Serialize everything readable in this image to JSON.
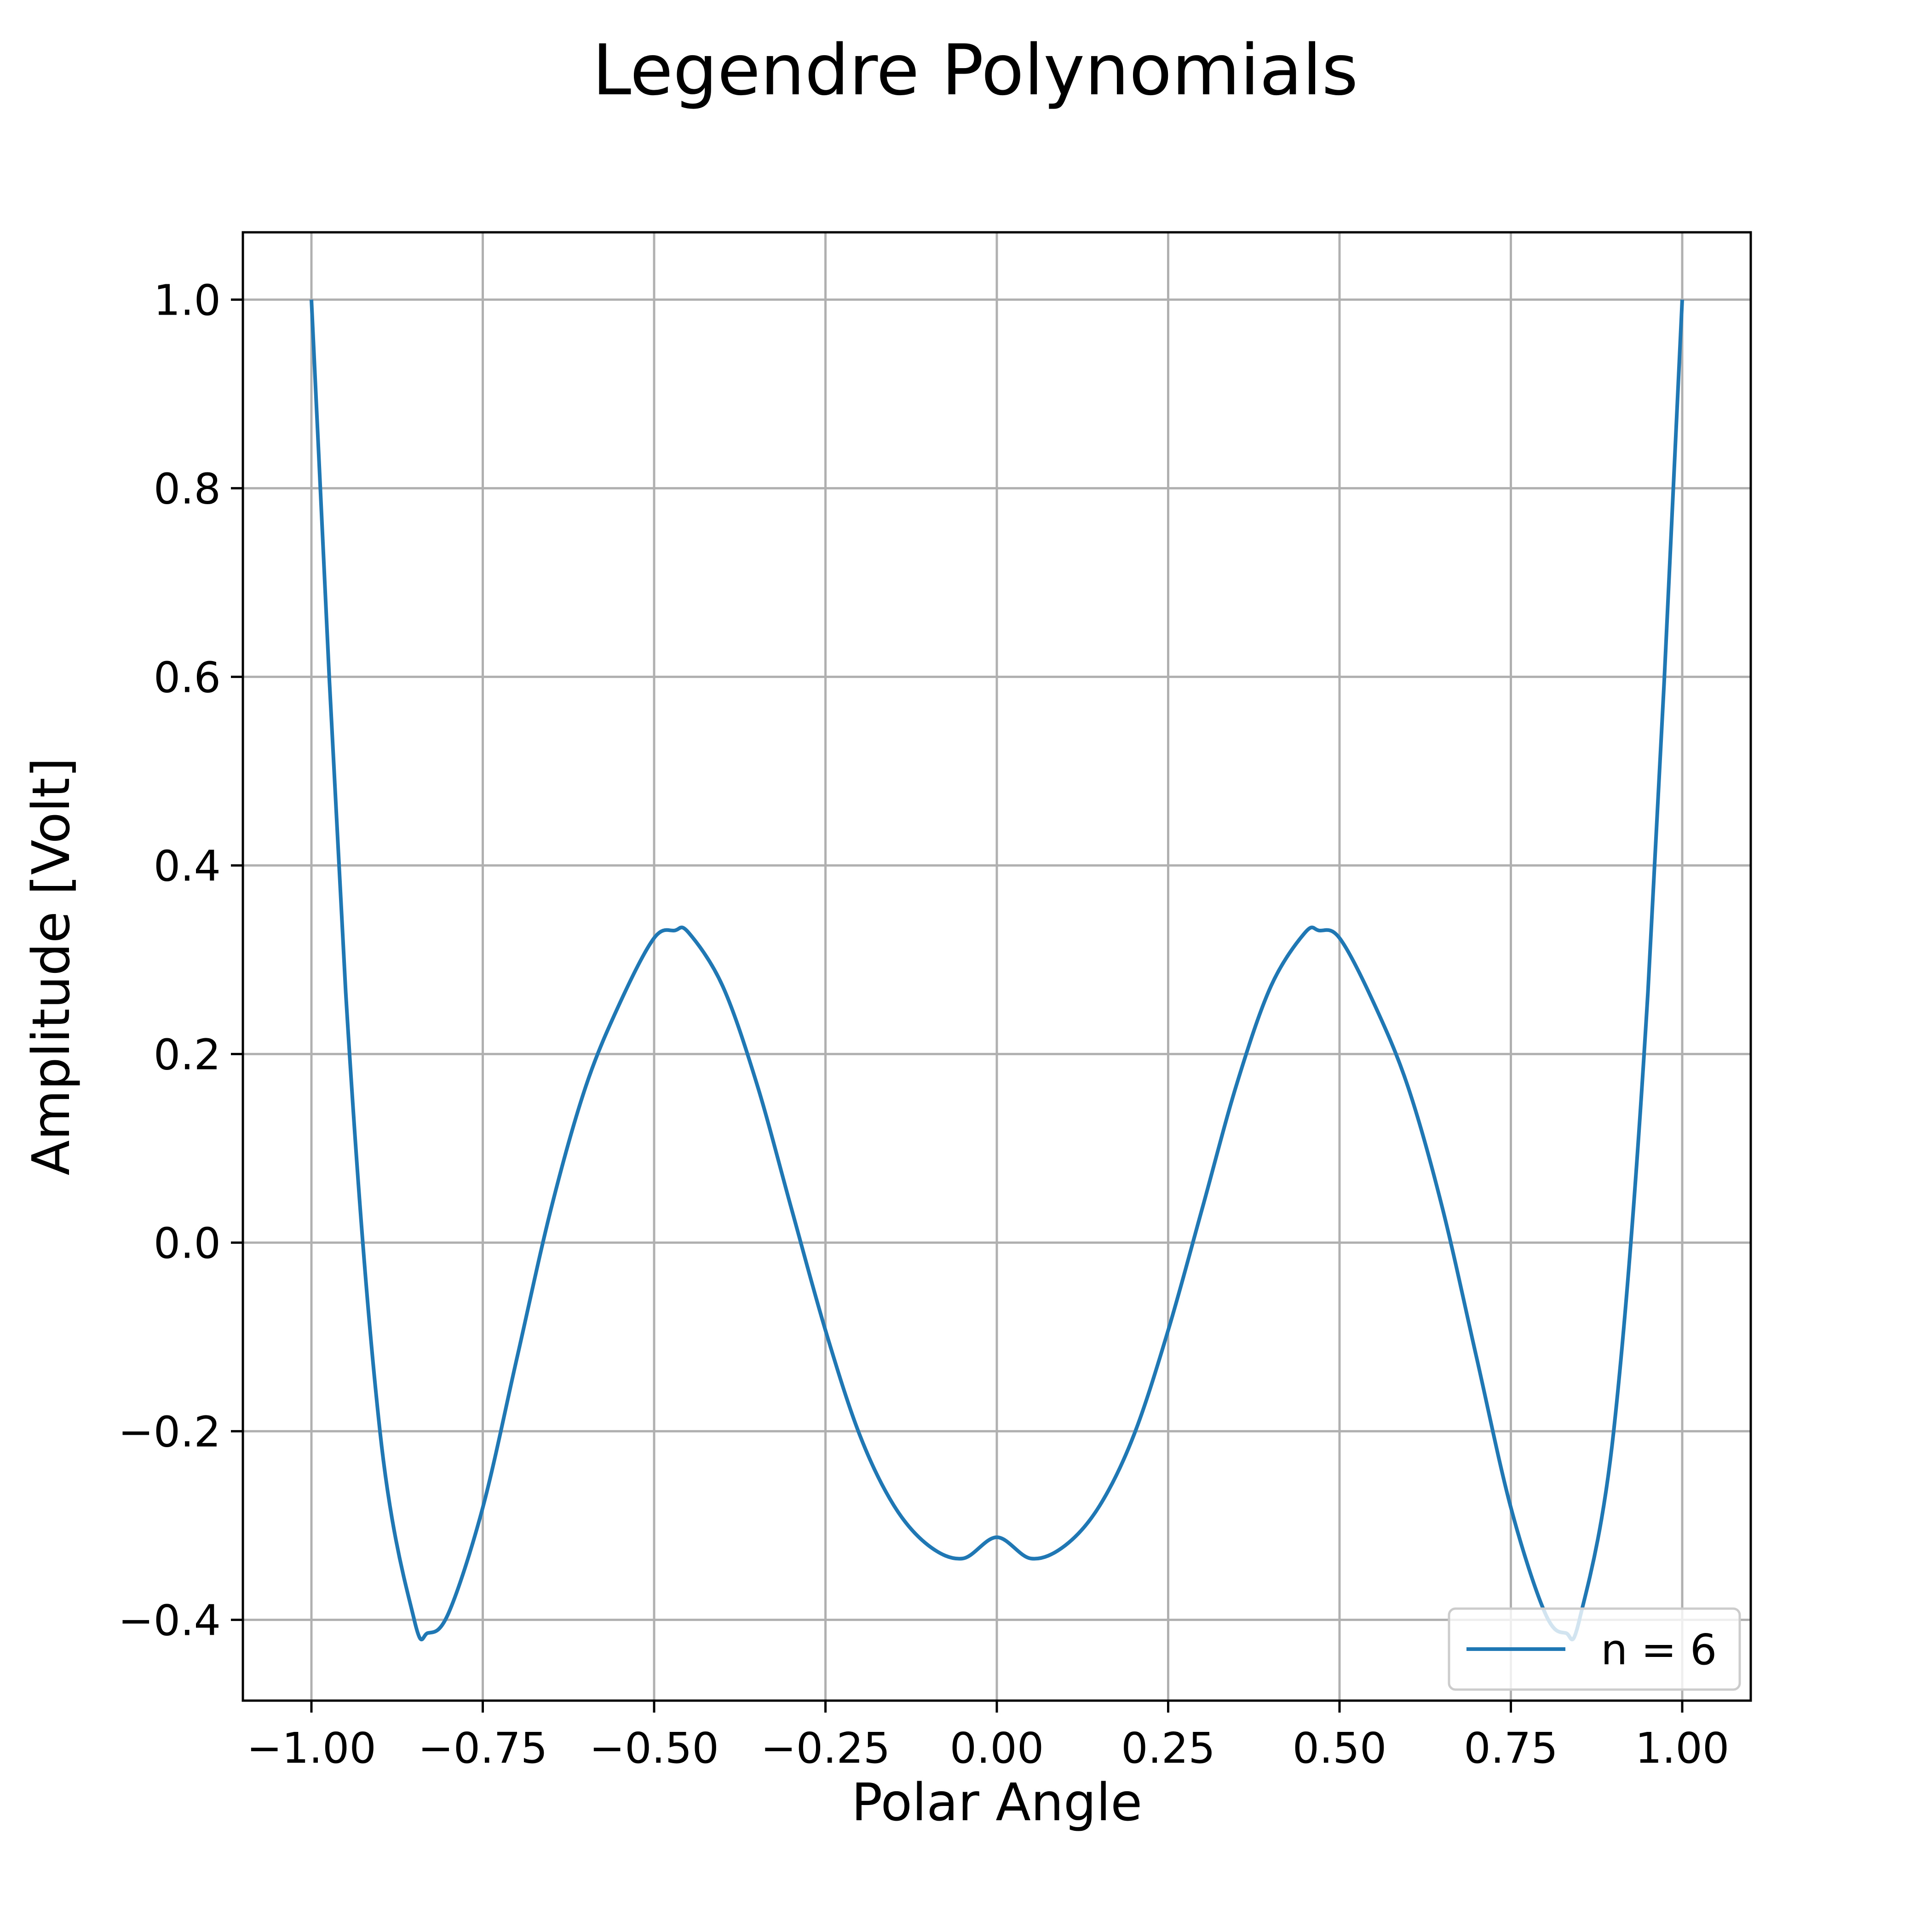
{
  "chart_data": {
    "type": "line",
    "title": "Legendre Polynomials",
    "xlabel": "Polar Angle",
    "ylabel": "Amplitude [Volt]",
    "xlim": [
      -1.1,
      1.1
    ],
    "ylim": [
      -0.4857,
      1.0714
    ],
    "xticks": [
      -1.0,
      -0.75,
      -0.5,
      -0.25,
      0.0,
      0.25,
      0.5,
      0.75,
      1.0
    ],
    "xtick_labels": [
      "−1.00",
      "−0.75",
      "−0.50",
      "−0.25",
      "0.00",
      "0.25",
      "0.50",
      "0.75",
      "1.00"
    ],
    "yticks": [
      -0.4,
      -0.2,
      0.0,
      0.2,
      0.4,
      0.6,
      0.8,
      1.0
    ],
    "ytick_labels": [
      "−0.4",
      "−0.2",
      "0.0",
      "0.2",
      "0.4",
      "0.6",
      "0.8",
      "1.0"
    ],
    "grid": true,
    "legend_position": "lower-right",
    "series": [
      {
        "name": "n = 6",
        "color": "#1f77b4",
        "x": [
          -1.0,
          -0.95,
          -0.9,
          -0.85,
          -0.83,
          -0.8,
          -0.75,
          -0.7,
          -0.65,
          -0.6,
          -0.55,
          -0.5,
          -0.47,
          -0.45,
          -0.4,
          -0.35,
          -0.3,
          -0.25,
          -0.2,
          -0.15,
          -0.1,
          -0.05,
          0.0,
          0.05,
          0.1,
          0.15,
          0.2,
          0.25,
          0.3,
          0.35,
          0.4,
          0.45,
          0.47,
          0.5,
          0.55,
          0.6,
          0.65,
          0.7,
          0.75,
          0.8,
          0.83,
          0.85,
          0.9,
          0.95,
          1.0
        ],
        "y": [
          1.0,
          0.266,
          -0.2,
          -0.4,
          -0.414,
          -0.393,
          -0.281,
          -0.122,
          0.037,
          0.165,
          0.254,
          0.323,
          0.331,
          0.329,
          0.272,
          0.168,
          0.037,
          -0.093,
          -0.204,
          -0.279,
          -0.321,
          -0.335,
          -0.3125,
          -0.335,
          -0.321,
          -0.279,
          -0.204,
          -0.093,
          0.037,
          0.168,
          0.272,
          0.329,
          0.331,
          0.323,
          0.254,
          0.165,
          0.037,
          -0.122,
          -0.281,
          -0.393,
          -0.414,
          -0.4,
          -0.2,
          0.266,
          1.0
        ]
      }
    ]
  }
}
